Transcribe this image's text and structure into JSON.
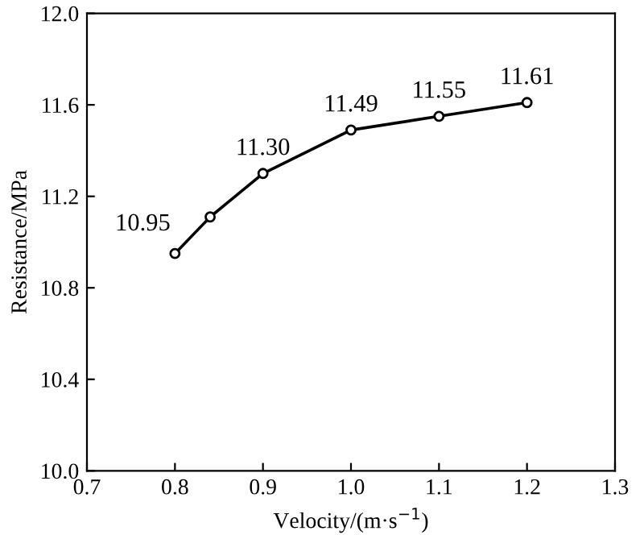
{
  "chart_data": {
    "type": "line",
    "xlabel": "Velocity/(m·s$^{−1}$)",
    "ylabel": "Resistance/MPa",
    "x": [
      0.8,
      0.84,
      0.9,
      1.0,
      1.1,
      1.2
    ],
    "series": [
      {
        "color": "#000000",
        "values": [
          10.95,
          11.11,
          11.3,
          11.49,
          11.55,
          11.61
        ],
        "value_labels": [
          "10.95",
          null,
          "11.30",
          "11.49",
          "11.55",
          "11.61"
        ]
      }
    ],
    "xlim": [
      0.7,
      1.3
    ],
    "xticks": [
      0.7,
      0.8,
      0.9,
      {
        "value": 1.0,
        "label": "1.0"
      },
      1.1,
      1.2,
      1.3
    ],
    "ylim": [
      10.0,
      12.0
    ],
    "yticks": [
      {
        "value": 10.0,
        "label": "10.0"
      },
      10.4,
      10.8,
      11.2,
      11.6,
      {
        "value": 12.0,
        "label": "12.0"
      }
    ],
    "marker": "circle",
    "line_style": "solid",
    "grid": false,
    "legend": false
  }
}
